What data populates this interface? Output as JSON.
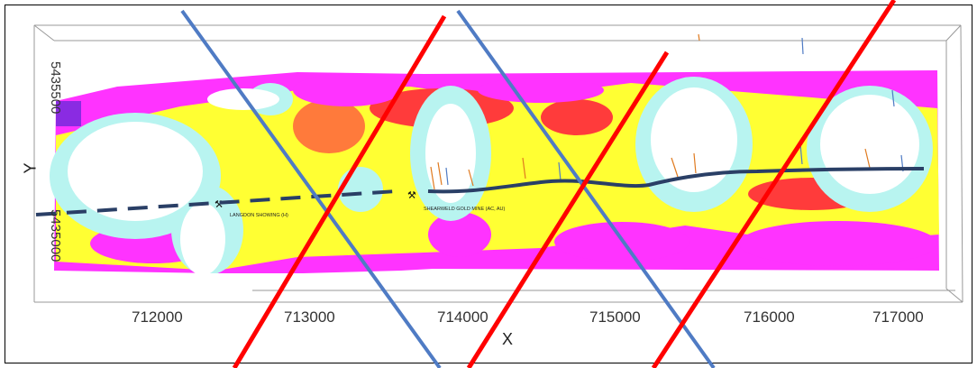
{
  "map": {
    "x_axis_title": "X",
    "y_axis_title": "Y",
    "x_ticks": [
      "712000",
      "713000",
      "714000",
      "715000",
      "716000",
      "717000"
    ],
    "y_ticks": [
      "5435500",
      "5435000"
    ],
    "sites": [
      {
        "name": "LANGDON SHOWING (H)",
        "icon": "pickaxe-icon"
      },
      {
        "name": "SHEARWELD GOLD MINE (AC, AU)",
        "icon": "pickaxe-icon"
      }
    ],
    "colors": {
      "high": "#ffffff",
      "mid_high": "#b8f4f0",
      "mid": "#ffff33",
      "mid_low": "#ff3b3b",
      "low": "#ff33ff",
      "very_low": "#8a2be2",
      "fault_red": "#ff0000",
      "fault_blue": "#4f7bc4",
      "trend": "#2a3f66"
    }
  }
}
